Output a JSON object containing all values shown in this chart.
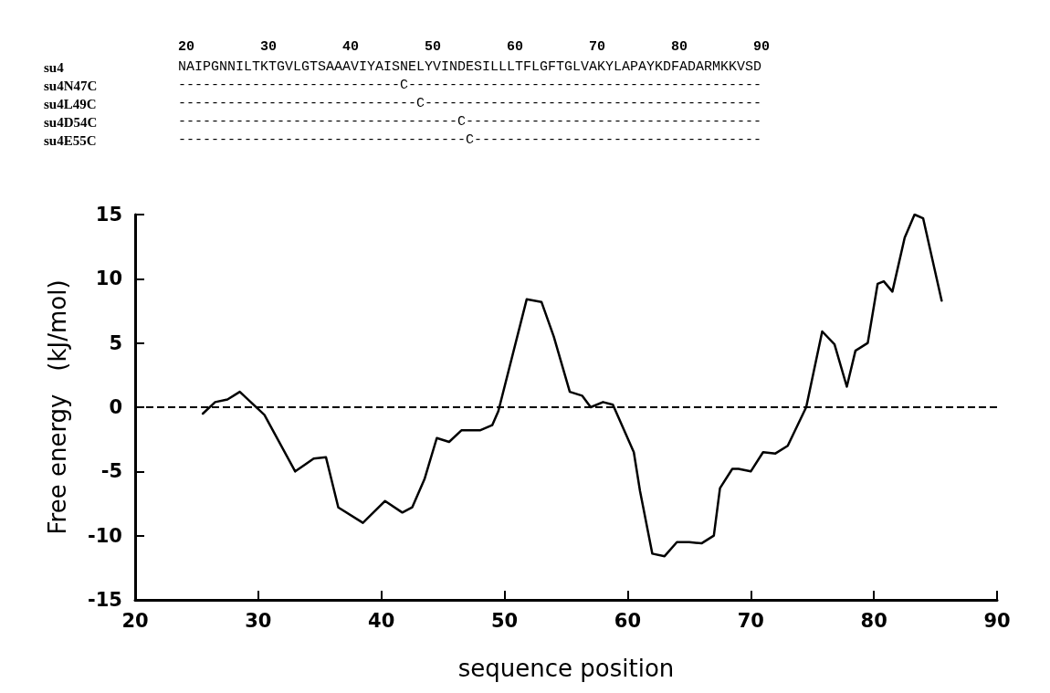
{
  "chart_data": {
    "type": "line",
    "xlabel": "sequence position",
    "ylabel": "Free energy   (kJ/mol)",
    "x": [
      25.5,
      26.5,
      27.5,
      28.5,
      30.5,
      33,
      34.5,
      35.5,
      36.5,
      38.5,
      40.3,
      41.7,
      42.5,
      43.5,
      44.5,
      45.5,
      46.5,
      48,
      49,
      49.5,
      51.8,
      53,
      54,
      55.3,
      56.3,
      57,
      58,
      58.8,
      60.5,
      61,
      62,
      63,
      64,
      65,
      66,
      67,
      67.5,
      68.5,
      69,
      70,
      71,
      72,
      73,
      74.5,
      75.8,
      76.8,
      77.8,
      78.5,
      79.5,
      80.3,
      80.8,
      81.5,
      82.5,
      83.3,
      84,
      85.5
    ],
    "series": [
      {
        "color": "#000000",
        "values": [
          -0.5,
          0.4,
          0.6,
          1.2,
          -0.6,
          -5,
          -4,
          -3.9,
          -7.8,
          -9,
          -7.3,
          -8.2,
          -7.8,
          -5.6,
          -2.4,
          -2.7,
          -1.8,
          -1.8,
          -1.4,
          -0.3,
          8.4,
          8.2,
          5.5,
          1.2,
          0.9,
          0,
          0.4,
          0.2,
          -3.5,
          -6.5,
          -11.4,
          -11.6,
          -10.5,
          -10.5,
          -10.6,
          -10,
          -6.3,
          -4.8,
          -4.8,
          -5,
          -3.5,
          -3.6,
          -3,
          0,
          5.9,
          4.9,
          1.6,
          4.4,
          5,
          9.6,
          9.8,
          9,
          13.2,
          15,
          14.7,
          8.3
        ]
      }
    ],
    "xlim": [
      20,
      90
    ],
    "xticks": [
      20,
      30,
      40,
      50,
      60,
      70,
      80,
      90
    ],
    "ylim": [
      -15,
      15
    ],
    "yticks": [
      -15,
      -10,
      -5,
      0,
      5,
      10,
      15
    ],
    "ref_lines": [
      {
        "axis": "y",
        "value": 0,
        "line_style": "dashed",
        "color": "#000000"
      }
    ],
    "marker": "none",
    "line_style": "solid",
    "grid": false,
    "annotations": [
      "20        30        40        50        60        70        80        90",
      "su4",
      "NAIPGNNILTKTGVLGTSAAAVIYAISNELYVINDESILLLTFLGFTGLVAKYLAPAYKDFADARMKKVSD",
      "su4N47C",
      "---------------------------C-------------------------------------------",
      "su4L49C",
      "-----------------------------C-----------------------------------------",
      "su4D54C",
      "----------------------------------C------------------------------------",
      "su4E55C",
      "-----------------------------------C-----------------------------------"
    ]
  }
}
